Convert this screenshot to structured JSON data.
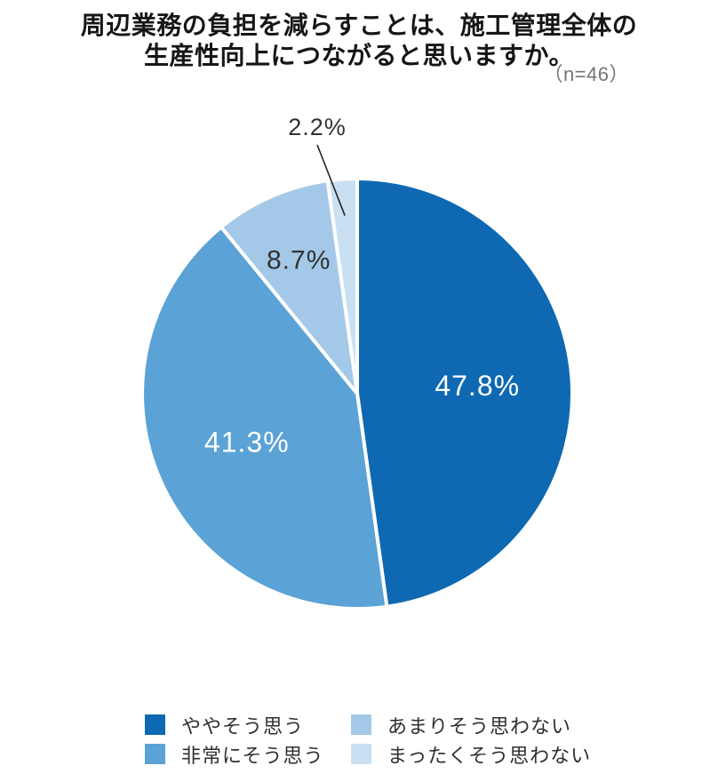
{
  "title": {
    "text": "周辺業務の負担を減らすことは、施工管理全体の\n生産性向上につながると思いますか。",
    "sample_size": "（n=46）"
  },
  "chart_data": {
    "type": "pie",
    "title": "周辺業務の負担を減らすことは、施工管理全体の生産性向上につながると思いますか。",
    "sample_size": "n=46",
    "unit": "%",
    "direction": "clockwise",
    "start_angle_deg": 0,
    "legend_position": "bottom",
    "slices": [
      {
        "label": "ややそう思う",
        "value": 47.8,
        "display": "47.8%",
        "color": "#0e69b2",
        "label_color": "#ffffff"
      },
      {
        "label": "非常にそう思う",
        "value": 41.3,
        "display": "41.3%",
        "color": "#5ba2d6",
        "label_color": "#ffffff"
      },
      {
        "label": "あまりそう思わない",
        "value": 8.7,
        "display": "8.7%",
        "color": "#a4c9e8",
        "label_color": "#333333"
      },
      {
        "label": "まったくそう思わない",
        "value": 2.2,
        "display": "2.2%",
        "color": "#c9e0f2",
        "label_color": "#333333"
      }
    ],
    "leader_line_color": "#222222",
    "separator_color": "#ffffff"
  }
}
